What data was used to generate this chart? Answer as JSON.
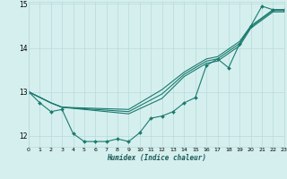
{
  "xlabel": "Humidex (Indice chaleur)",
  "bg_color": "#d5efee",
  "grid_color": "#b8dada",
  "line_color": "#1a7a6e",
  "xlim": [
    0,
    23
  ],
  "ylim": [
    11.75,
    15.05
  ],
  "yticks": [
    12,
    13,
    14,
    15
  ],
  "xtick_labels": [
    "0",
    "1",
    "2",
    "3",
    "4",
    "5",
    "6",
    "7",
    "8",
    "9",
    "10",
    "11",
    "12",
    "13",
    "14",
    "15",
    "16",
    "17",
    "18",
    "19",
    "20",
    "21",
    "22",
    "23"
  ],
  "lines": [
    {
      "x": [
        0,
        1,
        2,
        3,
        4,
        5,
        6,
        7,
        8,
        9,
        10,
        11,
        12,
        13,
        14,
        15,
        16,
        17,
        18,
        19,
        20,
        21,
        22,
        23
      ],
      "y": [
        13.0,
        12.75,
        12.55,
        12.6,
        12.05,
        11.87,
        11.87,
        11.87,
        11.93,
        11.87,
        12.07,
        12.4,
        12.45,
        12.55,
        12.75,
        12.87,
        13.6,
        13.75,
        13.55,
        14.1,
        14.5,
        14.95,
        14.87,
        14.87
      ],
      "has_markers": true
    },
    {
      "x": [
        0,
        2,
        3,
        9,
        12,
        14,
        16,
        17,
        19,
        20,
        22,
        23
      ],
      "y": [
        13.0,
        12.75,
        12.65,
        12.6,
        13.05,
        13.45,
        13.75,
        13.8,
        14.15,
        14.5,
        14.87,
        14.87
      ],
      "has_markers": false
    },
    {
      "x": [
        0,
        2,
        3,
        9,
        12,
        14,
        16,
        17,
        19,
        20,
        22,
        23
      ],
      "y": [
        13.0,
        12.75,
        12.65,
        12.5,
        12.85,
        13.35,
        13.65,
        13.7,
        14.05,
        14.45,
        14.82,
        14.82
      ],
      "has_markers": false
    },
    {
      "x": [
        0,
        2,
        3,
        9,
        12,
        14,
        16,
        17,
        19,
        20,
        22,
        23
      ],
      "y": [
        13.0,
        12.75,
        12.65,
        12.55,
        12.95,
        13.4,
        13.7,
        13.75,
        14.1,
        14.48,
        14.85,
        14.85
      ],
      "has_markers": false
    }
  ]
}
